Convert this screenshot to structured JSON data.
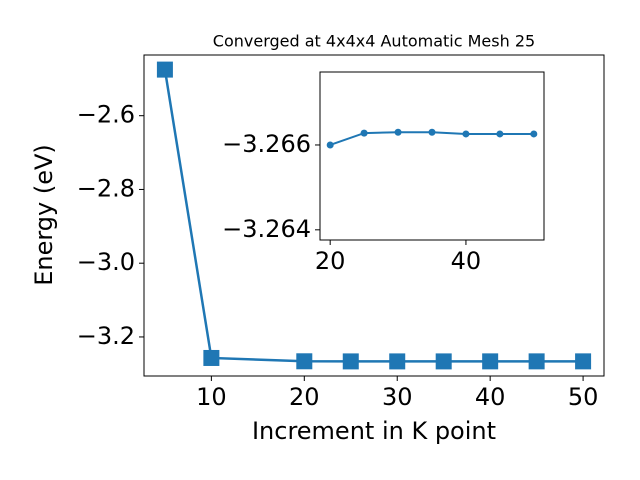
{
  "chart_data": [
    {
      "type": "line",
      "title": "Converged at 4x4x4 Automatic Mesh 25",
      "xlabel": "Increment in K point",
      "ylabel": "Energy (eV)",
      "x": [
        5,
        10,
        20,
        25,
        30,
        35,
        40,
        45,
        50
      ],
      "series": [
        {
          "color": "#1f77b4",
          "marker": "square",
          "values": [
            -2.475,
            -3.257,
            -3.266,
            -3.2663,
            -3.2663,
            -3.2663,
            -3.2662,
            -3.2662,
            -3.2662
          ]
        }
      ],
      "xlim": [
        2.75,
        52.25
      ],
      "ylim": [
        -3.3059,
        -2.4354
      ],
      "xticks": [
        10,
        20,
        30,
        40,
        50
      ],
      "yticks": [
        {
          "value": -3.2,
          "label": "−3.2"
        },
        {
          "value": -3.0,
          "label": "−3.0"
        },
        {
          "value": -2.8,
          "label": "−2.8"
        },
        {
          "value": -2.6,
          "label": "−2.6"
        }
      ]
    },
    {
      "type": "line",
      "x": [
        20,
        25,
        30,
        35,
        40,
        45,
        50
      ],
      "series": [
        {
          "color": "#1f77b4",
          "marker": "circle",
          "values": [
            -3.266,
            -3.26628,
            -3.2663,
            -3.2663,
            -3.26626,
            -3.26626,
            -3.26626
          ]
        }
      ],
      "xlim": [
        18.5,
        51.5
      ],
      "ylim": [
        -3.26376,
        -3.26772
      ],
      "xticks": [
        20,
        40
      ],
      "yticks": [
        {
          "value": -3.266,
          "label": "−3.266"
        },
        {
          "value": -3.264,
          "label": "−3.264"
        }
      ]
    }
  ]
}
